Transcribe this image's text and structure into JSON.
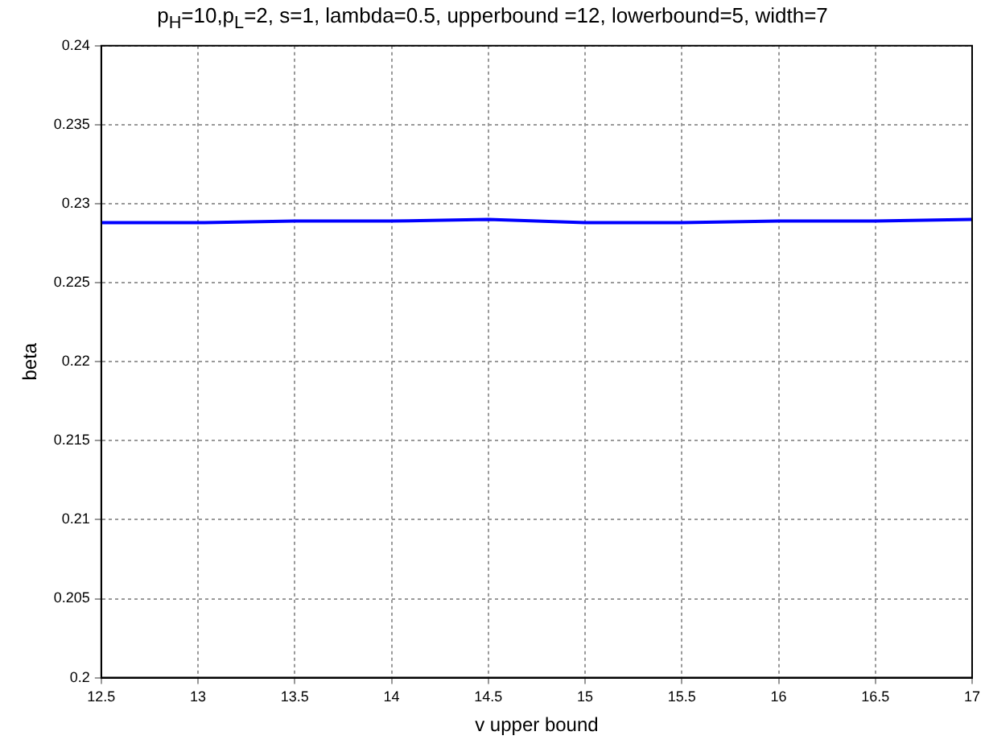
{
  "chart_data": {
    "type": "line",
    "title": "p$_{H}$=10,p$_{L}$=2, s=1, lambda=0.5, upperbound =12, lowerbound=5, width=7",
    "xlabel": "v upper bound",
    "ylabel": "beta",
    "x": [
      12.5,
      13,
      13.5,
      14,
      14.5,
      15,
      15.5,
      16,
      16.5,
      17
    ],
    "series": [
      {
        "color": "#0000ff",
        "values": [
          0.2288,
          0.2288,
          0.2289,
          0.2289,
          0.229,
          0.2288,
          0.2288,
          0.2289,
          0.2289,
          0.229
        ]
      }
    ],
    "xlim": [
      12.5,
      17
    ],
    "xticks": [
      12.5,
      13,
      13.5,
      14,
      14.5,
      15,
      15.5,
      16,
      16.5,
      17
    ],
    "ylim": [
      0.2,
      0.24
    ],
    "yticks": [
      0.2,
      0.205,
      0.21,
      0.215,
      0.22,
      0.225,
      0.23,
      0.235,
      0.24
    ],
    "grid": true,
    "marker": "none",
    "line_style": "solid"
  }
}
